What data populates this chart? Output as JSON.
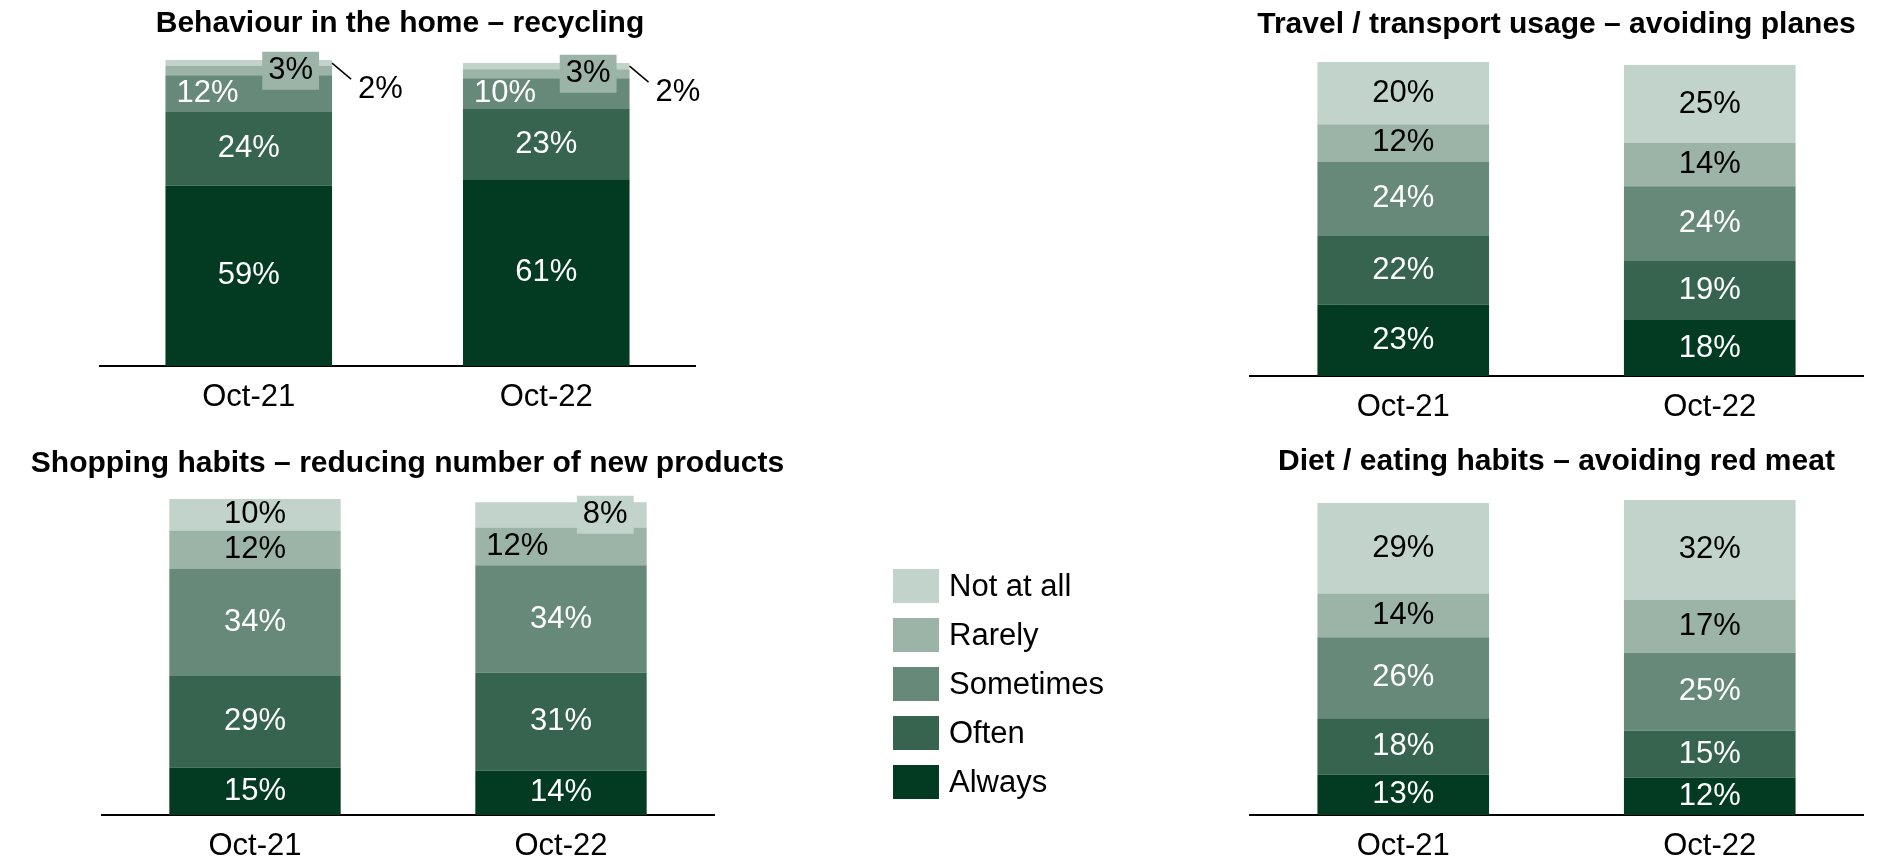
{
  "chart_data": [
    {
      "type": "bar",
      "title": "Behaviour in the home – recycling",
      "categories": [
        "Oct-21",
        "Oct-22"
      ],
      "stacked": true,
      "ylim": [
        0,
        100
      ],
      "tick_labels": "x",
      "series": [
        {
          "color": "#023b22",
          "values": [
            59,
            61
          ],
          "value_labels": [
            "59%",
            "61%"
          ]
        },
        {
          "color": "#36644f",
          "values": [
            24,
            23
          ],
          "value_labels": [
            "24%",
            "23%"
          ]
        },
        {
          "color": "#67897a",
          "values": [
            12,
            10
          ],
          "value_labels": [
            "12%",
            "10%"
          ]
        },
        {
          "color": "#9bb4a7",
          "values": [
            3,
            3
          ],
          "value_labels": [
            "3%",
            "3%"
          ]
        },
        {
          "color": "#c1d3cb",
          "values": [
            2,
            2
          ],
          "value_labels": [
            "2%",
            "2%"
          ]
        }
      ]
    },
    {
      "type": "bar",
      "title": "Travel / transport usage – avoiding planes",
      "categories": [
        "Oct-21",
        "Oct-22"
      ],
      "stacked": true,
      "ylim": [
        0,
        101
      ],
      "tick_labels": "x",
      "series": [
        {
          "color": "#023b22",
          "values": [
            23,
            18
          ],
          "value_labels": [
            "23%",
            "18%"
          ]
        },
        {
          "color": "#36644f",
          "values": [
            22,
            19
          ],
          "value_labels": [
            "22%",
            "19%"
          ]
        },
        {
          "color": "#67897a",
          "values": [
            24,
            24
          ],
          "value_labels": [
            "24%",
            "24%"
          ]
        },
        {
          "color": "#9bb4a7",
          "values": [
            12,
            14
          ],
          "value_labels": [
            "12%",
            "14%"
          ]
        },
        {
          "color": "#c1d3cb",
          "values": [
            20,
            25
          ],
          "value_labels": [
            "20%",
            "25%"
          ]
        }
      ]
    },
    {
      "type": "bar",
      "title": "Shopping habits – reducing number of new products",
      "categories": [
        "Oct-21",
        "Oct-22"
      ],
      "stacked": true,
      "ylim": [
        0,
        100
      ],
      "tick_labels": "x",
      "legend": "right",
      "series": [
        {
          "name": "Always",
          "color": "#023b22",
          "values": [
            15,
            14
          ],
          "value_labels": [
            "15%",
            "14%"
          ]
        },
        {
          "name": "Often",
          "color": "#36644f",
          "values": [
            29,
            31
          ],
          "value_labels": [
            "29%",
            "31%"
          ]
        },
        {
          "name": "Sometimes",
          "color": "#67897a",
          "values": [
            34,
            34
          ],
          "value_labels": [
            "34%",
            "34%"
          ]
        },
        {
          "name": "Rarely",
          "color": "#9bb4a7",
          "values": [
            12,
            12
          ],
          "value_labels": [
            "12%",
            "12%"
          ]
        },
        {
          "name": "Not at all",
          "color": "#c1d3cb",
          "values": [
            10,
            8
          ],
          "value_labels": [
            "10%",
            "8%"
          ]
        }
      ]
    },
    {
      "type": "bar",
      "title": "Diet / eating habits – avoiding red meat",
      "categories": [
        "Oct-21",
        "Oct-22"
      ],
      "stacked": true,
      "ylim": [
        0,
        101
      ],
      "tick_labels": "x",
      "series": [
        {
          "color": "#023b22",
          "values": [
            13,
            12
          ],
          "value_labels": [
            "13%",
            "12%"
          ]
        },
        {
          "color": "#36644f",
          "values": [
            18,
            15
          ],
          "value_labels": [
            "18%",
            "15%"
          ]
        },
        {
          "color": "#67897a",
          "values": [
            26,
            25
          ],
          "value_labels": [
            "26%",
            "25%"
          ]
        },
        {
          "color": "#9bb4a7",
          "values": [
            14,
            17
          ],
          "value_labels": [
            "14%",
            "17%"
          ]
        },
        {
          "color": "#c1d3cb",
          "values": [
            29,
            32
          ],
          "value_labels": [
            "29%",
            "32%"
          ]
        }
      ]
    }
  ]
}
